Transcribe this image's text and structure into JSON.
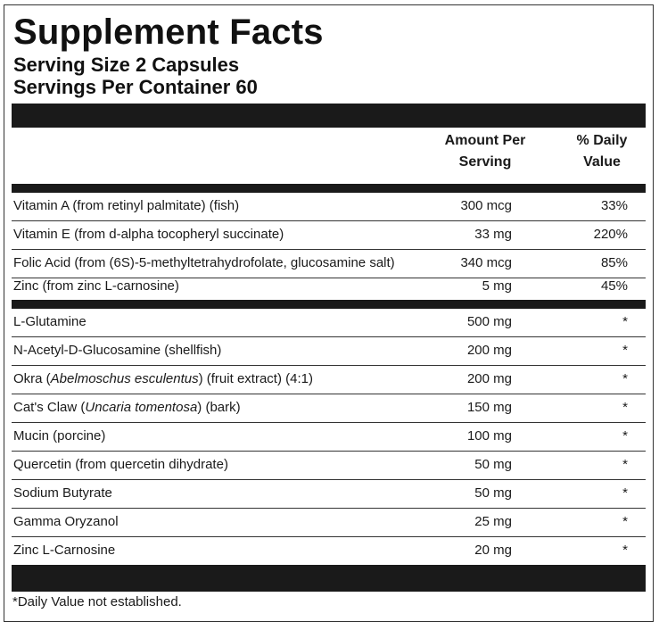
{
  "label": {
    "title": "Supplement Facts",
    "serving_size": "Serving Size 2 Capsules",
    "servings_per_container": "Servings Per Container 60",
    "column_amount": "Amount Per\nServing",
    "column_daily_value": "% Daily\nValue",
    "footnote": "*Daily Value not established."
  },
  "nutrients": [
    {
      "name": "Vitamin A (from retinyl palmitate) (fish)",
      "amount": "300 mcg",
      "dv": "33%"
    },
    {
      "name": "Vitamin E (from d-alpha tocopheryl succinate)",
      "amount": "33 mg",
      "dv": "220%"
    },
    {
      "name": "Folic Acid (from (6S)-5-methyltetrahydrofolate, glucosamine salt)",
      "amount": "340 mcg",
      "dv": "85%"
    },
    {
      "name": "Zinc (from zinc L-carnosine)",
      "amount": "5 mg",
      "dv": "45%"
    }
  ],
  "others": [
    {
      "name_before": "L-Glutamine",
      "name_italic": "",
      "name_after": "",
      "amount": "500 mg",
      "dv": "*"
    },
    {
      "name_before": "N-Acetyl-D-Glucosamine (shellfish)",
      "name_italic": "",
      "name_after": "",
      "amount": "200 mg",
      "dv": "*"
    },
    {
      "name_before": "Okra (",
      "name_italic": "Abelmoschus esculentus",
      "name_after": ") (fruit extract) (4:1)",
      "amount": "200 mg",
      "dv": "*"
    },
    {
      "name_before": "Cat's Claw (",
      "name_italic": "Uncaria tomentosa",
      "name_after": ") (bark)",
      "amount": "150 mg",
      "dv": "*"
    },
    {
      "name_before": "Mucin (porcine)",
      "name_italic": "",
      "name_after": "",
      "amount": "100 mg",
      "dv": "*"
    },
    {
      "name_before": "Quercetin (from quercetin dihydrate)",
      "name_italic": "",
      "name_after": "",
      "amount": "50 mg",
      "dv": "*"
    },
    {
      "name_before": "Sodium Butyrate",
      "name_italic": "",
      "name_after": "",
      "amount": "50 mg",
      "dv": "*"
    },
    {
      "name_before": "Gamma Oryzanol",
      "name_italic": "",
      "name_after": "",
      "amount": "25 mg",
      "dv": "*"
    },
    {
      "name_before": "Zinc L-Carnosine",
      "name_italic": "",
      "name_after": "",
      "amount": "20 mg",
      "dv": "*"
    }
  ]
}
